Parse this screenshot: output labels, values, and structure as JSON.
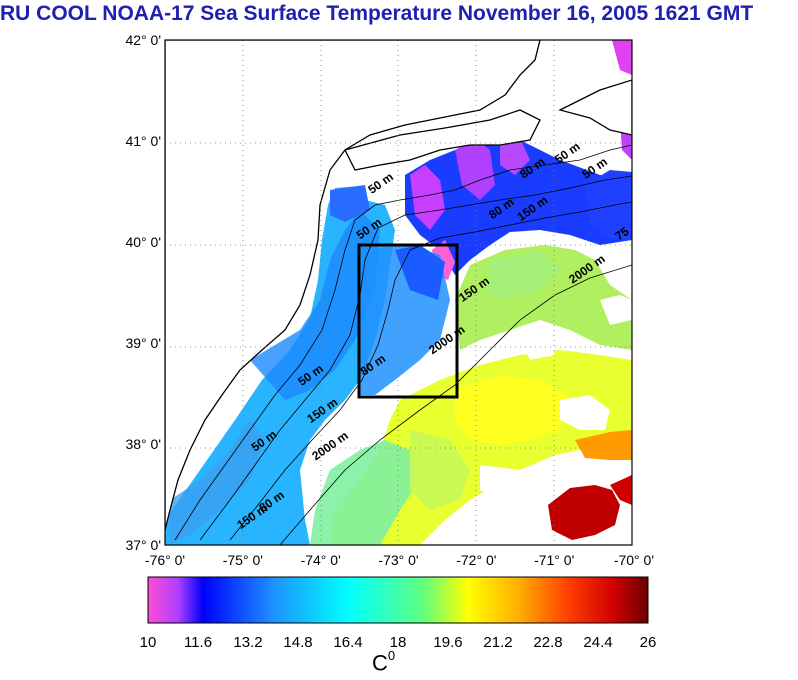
{
  "title": "RU COOL  NOAA-17 Sea Surface Temperature November 16, 2005 1621 GMT",
  "map": {
    "lon_range": [
      -76,
      -70
    ],
    "lat_range": [
      37,
      42
    ],
    "lat_ticks": [
      "42° 0'",
      "41° 0'",
      "40° 0'",
      "39° 0'",
      "38° 0'",
      "37° 0'"
    ],
    "lon_ticks": [
      "-76° 0'",
      "-75° 0'",
      "-74° 0'",
      "-73° 0'",
      "-72° 0'",
      "-71° 0'",
      "-70° 0'"
    ],
    "grid": true,
    "study_box": {
      "lon": [
        -73.5,
        -72.5
      ],
      "lat": [
        38.5,
        40.0
      ]
    },
    "isobath_labels": [
      {
        "text": "50 m",
        "lon": -74.7,
        "lat": 38.0
      },
      {
        "text": "80 m",
        "lon": -74.6,
        "lat": 37.4
      },
      {
        "text": "150 m",
        "lon": -74.85,
        "lat": 37.25
      },
      {
        "text": "150 m",
        "lon": -73.95,
        "lat": 38.3
      },
      {
        "text": "80 m",
        "lon": -73.3,
        "lat": 38.75
      },
      {
        "text": "50 m",
        "lon": -74.1,
        "lat": 38.65
      },
      {
        "text": "2000 m",
        "lon": -73.85,
        "lat": 37.95
      },
      {
        "text": "2000 m",
        "lon": -72.35,
        "lat": 39.0
      },
      {
        "text": "150 m",
        "lon": -72.0,
        "lat": 39.5
      },
      {
        "text": "50 m",
        "lon": -73.35,
        "lat": 40.1
      },
      {
        "text": "50 m",
        "lon": -73.2,
        "lat": 40.55
      },
      {
        "text": "80 m",
        "lon": -71.25,
        "lat": 40.7
      },
      {
        "text": "80 m",
        "lon": -71.65,
        "lat": 40.3
      },
      {
        "text": "150 m",
        "lon": -71.25,
        "lat": 40.3
      },
      {
        "text": "50 m",
        "lon": -70.8,
        "lat": 40.85
      },
      {
        "text": "50 m",
        "lon": -70.45,
        "lat": 40.7
      },
      {
        "text": "2000 m",
        "lon": -70.55,
        "lat": 39.7
      },
      {
        "text": "75",
        "lon": -70.1,
        "lat": 40.05
      }
    ]
  },
  "colorbar": {
    "ticks": [
      "10",
      "11.6",
      "13.2",
      "14.8",
      "16.4",
      "18",
      "19.6",
      "21.2",
      "22.8",
      "24.4",
      "26"
    ],
    "range": [
      10,
      26
    ],
    "unit_base": "C",
    "unit_sup": "0"
  }
}
